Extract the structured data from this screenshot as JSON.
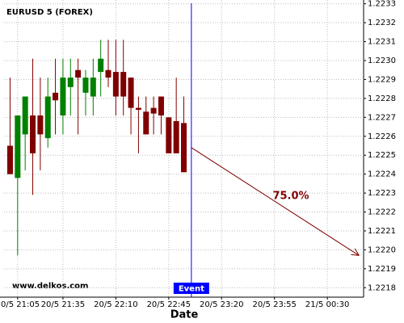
{
  "chart_data": {
    "type": "candlestick",
    "title": "EURUSD 5 (FOREX)",
    "xlabel": "Date",
    "watermark": "www.delkos.com",
    "x": [
      "20/5 21:00",
      "20/5 21:05",
      "20/5 21:10",
      "20/5 21:15",
      "20/5 21:20",
      "20/5 21:25",
      "20/5 21:30",
      "20/5 21:35",
      "20/5 21:40",
      "20/5 21:45",
      "20/5 21:50",
      "20/5 21:55",
      "20/5 22:00",
      "20/5 22:05",
      "20/5 22:10",
      "20/5 22:15",
      "20/5 22:20",
      "20/5 22:25",
      "20/5 22:30",
      "20/5 22:35",
      "20/5 22:40",
      "20/5 22:45",
      "20/5 22:50",
      "20/5 22:55"
    ],
    "open": [
      1.22255,
      1.22238,
      1.22261,
      1.22271,
      1.22271,
      1.22259,
      1.22283,
      1.22271,
      1.22286,
      1.22295,
      1.22283,
      1.22281,
      1.22294,
      1.22295,
      1.22294,
      1.22294,
      1.22291,
      1.22275,
      1.22273,
      1.22275,
      1.22281,
      1.2227,
      1.22268,
      1.22267
    ],
    "high": [
      1.22291,
      1.22271,
      1.22281,
      1.22301,
      1.22291,
      1.22291,
      1.22301,
      1.22301,
      1.22301,
      1.22301,
      1.22295,
      1.22301,
      1.22311,
      1.22311,
      1.22311,
      1.22311,
      1.22291,
      1.22281,
      1.22281,
      1.22281,
      1.22281,
      1.2227,
      1.22291,
      1.22281
    ],
    "low": [
      1.2224,
      1.22197,
      1.22242,
      1.22229,
      1.22242,
      1.22254,
      1.22261,
      1.22261,
      1.22271,
      1.22261,
      1.22271,
      1.22271,
      1.22281,
      1.22286,
      1.22271,
      1.22271,
      1.22261,
      1.22251,
      1.22261,
      1.22261,
      1.22261,
      1.22251,
      1.22251,
      1.22241
    ],
    "close": [
      1.2224,
      1.22271,
      1.22281,
      1.22251,
      1.22261,
      1.22281,
      1.22279,
      1.22291,
      1.22291,
      1.22291,
      1.22291,
      1.22291,
      1.22301,
      1.22291,
      1.22281,
      1.22281,
      1.22275,
      1.22274,
      1.22261,
      1.22272,
      1.22271,
      1.22251,
      1.22251,
      1.22241
    ],
    "up_color": "#008000",
    "down_color": "#800000",
    "xlim": [
      "20/5 20:56",
      "21/5 00:54"
    ],
    "xticks": [
      "20/5 21:05",
      "20/5 21:35",
      "20/5 22:10",
      "20/5 22:45",
      "20/5 23:20",
      "20/5 23:55",
      "21/5 00:30"
    ],
    "ylim": [
      1.22175,
      1.22332
    ],
    "yticks": [
      {
        "value": 1.2218,
        "label": "1.2218"
      },
      {
        "value": 1.2219,
        "label": "1.2219"
      },
      {
        "value": 1.222,
        "label": "1.2220"
      },
      {
        "value": 1.2221,
        "label": "1.2221"
      },
      {
        "value": 1.2222,
        "label": "1.2222"
      },
      {
        "value": 1.2223,
        "label": "1.2223"
      },
      {
        "value": 1.2224,
        "label": "1.2224"
      },
      {
        "value": 1.2225,
        "label": "1.2225"
      },
      {
        "value": 1.2226,
        "label": "1.2226"
      },
      {
        "value": 1.2227,
        "label": "1.2227"
      },
      {
        "value": 1.2228,
        "label": "1.2228"
      },
      {
        "value": 1.2229,
        "label": "1.2229"
      },
      {
        "value": 1.223,
        "label": "1.2230"
      },
      {
        "value": 1.2231,
        "label": "1.2231"
      },
      {
        "value": 1.2232,
        "label": "1.2232"
      },
      {
        "value": 1.2233,
        "label": "1.2233"
      }
    ],
    "grid": true,
    "event": {
      "x": "20/5 23:00",
      "label": "Event",
      "color": "#0000ff"
    },
    "forecast": {
      "x": [
        "20/5 23:00",
        "21/5 00:51"
      ],
      "values": [
        1.22254,
        1.22197
      ],
      "label": "75.0%",
      "color": "#800000"
    }
  }
}
